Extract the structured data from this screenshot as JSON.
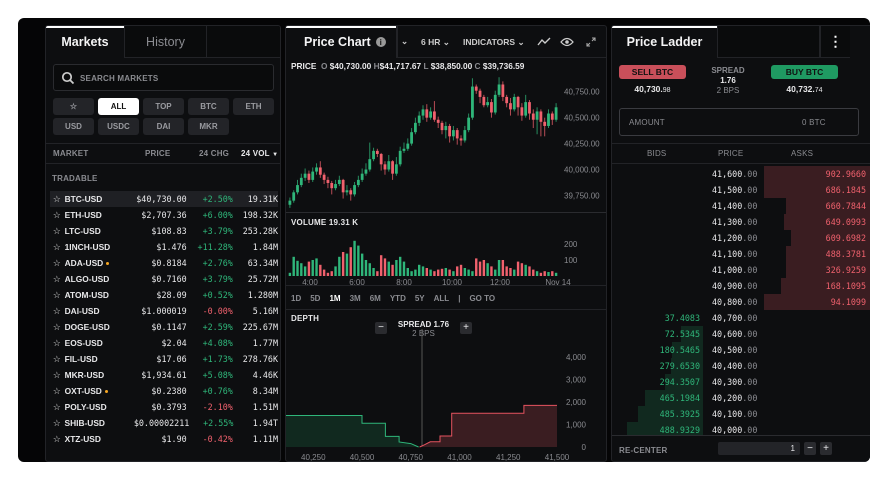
{
  "markets_panel": {
    "tabs": [
      {
        "label": "Markets",
        "active": true
      },
      {
        "label": "History",
        "active": false
      }
    ],
    "search_placeholder": "SEARCH MARKETS",
    "filters": [
      {
        "label": "☆",
        "active": false
      },
      {
        "label": "ALL",
        "active": true
      },
      {
        "label": "TOP",
        "active": false
      },
      {
        "label": "BTC",
        "active": false
      },
      {
        "label": "ETH",
        "active": false
      },
      {
        "label": "USD",
        "active": false
      },
      {
        "label": "USDC",
        "active": false
      },
      {
        "label": "DAI",
        "active": false
      },
      {
        "label": "MKR",
        "active": false
      }
    ],
    "columns": {
      "market": "MARKET",
      "price": "PRICE",
      "change": "24 CHG",
      "volume": "24 VOL"
    },
    "section": "TRADABLE",
    "rows": [
      {
        "market": "BTC-USD",
        "price": "$40,730.00",
        "change": "+2.50%",
        "volume": "19.31K",
        "selected": true
      },
      {
        "market": "ETH-USD",
        "price": "$2,707.36",
        "change": "+6.00%",
        "volume": "198.32K"
      },
      {
        "market": "LTC-USD",
        "price": "$108.83",
        "change": "+3.79%",
        "volume": "253.28K"
      },
      {
        "market": "1INCH-USD",
        "price": "$1.476",
        "change": "+11.28%",
        "volume": "1.84M"
      },
      {
        "market": "ADA-USD",
        "price": "$0.8184",
        "change": "+2.76%",
        "volume": "63.34M",
        "dot": true
      },
      {
        "market": "ALGO-USD",
        "price": "$0.7160",
        "change": "+3.79%",
        "volume": "25.72M"
      },
      {
        "market": "ATOM-USD",
        "price": "$28.09",
        "change": "+0.52%",
        "volume": "1.280M"
      },
      {
        "market": "DAI-USD",
        "price": "$1.000019",
        "change": "-0.00%",
        "volume": "5.16M"
      },
      {
        "market": "DOGE-USD",
        "price": "$0.1147",
        "change": "+2.59%",
        "volume": "225.67M"
      },
      {
        "market": "EOS-USD",
        "price": "$2.04",
        "change": "+4.08%",
        "volume": "1.77M"
      },
      {
        "market": "FIL-USD",
        "price": "$17.06",
        "change": "+1.73%",
        "volume": "278.76K"
      },
      {
        "market": "MKR-USD",
        "price": "$1,934.61",
        "change": "+5.08%",
        "volume": "4.46K"
      },
      {
        "market": "OXT-USD",
        "price": "$0.2380",
        "change": "+0.76%",
        "volume": "8.34M",
        "dot": true
      },
      {
        "market": "POLY-USD",
        "price": "$0.3793",
        "change": "-2.10%",
        "volume": "1.51M"
      },
      {
        "market": "SHIB-USD",
        "price": "$0.00002211",
        "change": "+2.55%",
        "volume": "1.94T"
      },
      {
        "market": "XTZ-USD",
        "price": "$1.90",
        "change": "-0.42%",
        "volume": "1.11M"
      }
    ]
  },
  "chart_panel": {
    "tab": "Price Chart",
    "interval": "6 HR",
    "indicators": "INDICATORS",
    "ohlc": {
      "label": "PRICE",
      "o_key": "O",
      "o": "$40,730.00",
      "h_key": "H",
      "h": "$41,717.67",
      "l_key": "L",
      "l": "$38,850.00",
      "c_key": "C",
      "c": "$39,736.59"
    },
    "volume_label": "VOLUME 19.31 K",
    "ranges": [
      "1D",
      "5D",
      "1M",
      "3M",
      "6M",
      "YTD",
      "5Y",
      "ALL"
    ],
    "active_range": "1M",
    "goto": "GO TO",
    "depth_label": "DEPTH",
    "spread": "SPREAD 1.76",
    "spread_bps": "2 BPS"
  },
  "chart_data": [
    {
      "type": "candlestick",
      "ylim": [
        39600,
        40950
      ],
      "yticks": [
        "40,750.00",
        "40,500.00",
        "40,250.00",
        "40,000.00",
        "39,750.00"
      ],
      "ytick_values": [
        40750,
        40500,
        40250,
        40000,
        39750
      ],
      "ohlc": [
        [
          39660,
          39730,
          39630,
          39700
        ],
        [
          39700,
          39800,
          39680,
          39780
        ],
        [
          39780,
          39900,
          39760,
          39850
        ],
        [
          39850,
          39960,
          39830,
          39920
        ],
        [
          39920,
          40010,
          39890,
          39960
        ],
        [
          39960,
          39990,
          39870,
          39900
        ],
        [
          39900,
          40020,
          39880,
          39980
        ],
        [
          39980,
          40060,
          39950,
          40020
        ],
        [
          40020,
          40080,
          39920,
          39950
        ],
        [
          39950,
          39970,
          39860,
          39900
        ],
        [
          39900,
          39930,
          39820,
          39870
        ],
        [
          39870,
          39890,
          39760,
          39820
        ],
        [
          39820,
          39900,
          39800,
          39860
        ],
        [
          39860,
          39940,
          39840,
          39900
        ],
        [
          39900,
          39910,
          39720,
          39780
        ],
        [
          39780,
          39850,
          39750,
          39800
        ],
        [
          39800,
          39820,
          39700,
          39760
        ],
        [
          39760,
          39880,
          39740,
          39850
        ],
        [
          39850,
          39940,
          39830,
          39900
        ],
        [
          39900,
          40010,
          39880,
          39960
        ],
        [
          39960,
          40060,
          39940,
          40000
        ],
        [
          40000,
          40260,
          39980,
          40100
        ],
        [
          40100,
          40210,
          40080,
          40180
        ],
        [
          40180,
          40200,
          40120,
          40150
        ],
        [
          40150,
          40160,
          39990,
          40050
        ],
        [
          40050,
          40080,
          39950,
          40000
        ],
        [
          40000,
          40140,
          39980,
          40080
        ],
        [
          40080,
          40090,
          39900,
          39960
        ],
        [
          39960,
          40120,
          39940,
          40050
        ],
        [
          40050,
          40220,
          40030,
          40180
        ],
        [
          40180,
          40260,
          40160,
          40200
        ],
        [
          40200,
          40300,
          40180,
          40250
        ],
        [
          40250,
          40400,
          40230,
          40360
        ],
        [
          40360,
          40500,
          40340,
          40450
        ],
        [
          40450,
          40560,
          40420,
          40520
        ],
        [
          40520,
          40620,
          40480,
          40580
        ],
        [
          40580,
          40630,
          40460,
          40500
        ],
        [
          40500,
          40600,
          40480,
          40560
        ],
        [
          40560,
          40660,
          40460,
          40480
        ],
        [
          40480,
          40510,
          40400,
          40450
        ],
        [
          40450,
          40470,
          40340,
          40380
        ],
        [
          40380,
          40460,
          40300,
          40420
        ],
        [
          40420,
          40440,
          40260,
          40320
        ],
        [
          40320,
          40420,
          40280,
          40380
        ],
        [
          40380,
          40400,
          40240,
          40300
        ],
        [
          40300,
          40330,
          40230,
          40280
        ],
        [
          40280,
          40420,
          40260,
          40380
        ],
        [
          40380,
          40540,
          40360,
          40500
        ],
        [
          40500,
          40880,
          40480,
          40800
        ],
        [
          40800,
          40820,
          40730,
          40760
        ],
        [
          40760,
          40780,
          40640,
          40700
        ],
        [
          40700,
          40720,
          40600,
          40620
        ],
        [
          40620,
          40700,
          40600,
          40650
        ],
        [
          40650,
          40680,
          40500,
          40550
        ],
        [
          40550,
          40760,
          40530,
          40720
        ],
        [
          40720,
          40890,
          40700,
          40820
        ],
        [
          40820,
          40850,
          40660,
          40700
        ],
        [
          40700,
          40720,
          40600,
          40640
        ],
        [
          40640,
          40690,
          40520,
          40580
        ],
        [
          40580,
          40730,
          40560,
          40700
        ],
        [
          40700,
          40710,
          40520,
          40600
        ],
        [
          40600,
          40640,
          40470,
          40520
        ],
        [
          40520,
          40720,
          40500,
          40650
        ],
        [
          40650,
          40670,
          40480,
          40540
        ],
        [
          40540,
          40580,
          40400,
          40480
        ],
        [
          40480,
          40600,
          40340,
          40560
        ],
        [
          40560,
          40580,
          40320,
          40460
        ],
        [
          40460,
          40500,
          40320,
          40420
        ],
        [
          40420,
          40580,
          40400,
          40540
        ],
        [
          40540,
          40560,
          40430,
          40480
        ],
        [
          40480,
          40640,
          40460,
          40600
        ]
      ]
    },
    {
      "type": "bar",
      "title": "VOLUME 19.31 K",
      "ylim": [
        0,
        250
      ],
      "yticks": [
        "200",
        "100"
      ],
      "ytick_values": [
        200,
        100
      ],
      "xticks": [
        "4:00",
        "6:00",
        "8:00",
        "10:00",
        "12:00",
        "Nov 14"
      ],
      "values": [
        20,
        120,
        95,
        80,
        60,
        90,
        100,
        110,
        70,
        40,
        20,
        30,
        60,
        120,
        150,
        140,
        180,
        220,
        190,
        140,
        100,
        80,
        50,
        30,
        130,
        110,
        90,
        70,
        100,
        120,
        90,
        50,
        30,
        40,
        70,
        60,
        50,
        40,
        30,
        40,
        45,
        50,
        40,
        30,
        60,
        70,
        50,
        40,
        30,
        110,
        90,
        100,
        80,
        60,
        40,
        100,
        100,
        60,
        50,
        40,
        90,
        80,
        70,
        60,
        40,
        30,
        20,
        30,
        25,
        30,
        20
      ]
    },
    {
      "type": "area",
      "title": "DEPTH",
      "xlim": [
        40110,
        41500
      ],
      "ylim": [
        0,
        4200
      ],
      "xticks": [
        "40,250",
        "40,500",
        "40,750",
        "41,000",
        "41,250",
        "41,500"
      ],
      "xtick_values": [
        40250,
        40500,
        40750,
        41000,
        41250,
        41500
      ],
      "yticks": [
        "4,000",
        "3,000",
        "2,000",
        "1,000",
        "0"
      ],
      "ytick_values": [
        4000,
        3000,
        2000,
        1000,
        0
      ],
      "series": [
        {
          "side": "bids",
          "color": "#2fb67a",
          "points": [
            [
              40110,
              1400
            ],
            [
              40500,
              1400
            ],
            [
              40500,
              1060
            ],
            [
              40620,
              1060
            ],
            [
              40620,
              470
            ],
            [
              40690,
              470
            ],
            [
              40690,
              220
            ],
            [
              40750,
              150
            ],
            [
              40790,
              0
            ]
          ]
        },
        {
          "side": "asks",
          "color": "#e5535f",
          "points": [
            [
              40795,
              0
            ],
            [
              40820,
              100
            ],
            [
              40850,
              230
            ],
            [
              40900,
              230
            ],
            [
              40900,
              490
            ],
            [
              40960,
              490
            ],
            [
              40960,
              1500
            ],
            [
              41330,
              1500
            ],
            [
              41330,
              1850
            ],
            [
              41500,
              1850
            ]
          ]
        }
      ]
    }
  ],
  "ladder_panel": {
    "tab": "Price Ladder",
    "sell_label": "SELL BTC",
    "sell_price_main": "40,730.",
    "sell_price_dec": "98",
    "buy_label": "BUY BTC",
    "buy_price_main": "40,732.",
    "buy_price_dec": "74",
    "spread_label": "SPREAD",
    "spread": "1.76",
    "spread_bps": "2 BPS",
    "amount_label": "AMOUNT",
    "amount_value": "0 BTC",
    "columns": {
      "bids": "BIDS",
      "price": "PRICE",
      "asks": "ASKS"
    },
    "rows": [
      {
        "price": "41,600",
        "dec": ".00",
        "ask": "902.9660"
      },
      {
        "price": "41,500",
        "dec": ".00",
        "ask": "686.1845"
      },
      {
        "price": "41,400",
        "dec": ".00",
        "ask": "660.7844"
      },
      {
        "price": "41,300",
        "dec": ".00",
        "ask": "649.0993"
      },
      {
        "price": "41,200",
        "dec": ".00",
        "ask": "609.6982"
      },
      {
        "price": "41,100",
        "dec": ".00",
        "ask": "488.3781"
      },
      {
        "price": "41,000",
        "dec": ".00",
        "ask": "326.9259"
      },
      {
        "price": "40,900",
        "dec": ".00",
        "ask": "168.1095"
      },
      {
        "price": "40,800",
        "dec": ".00",
        "ask": "94.1099"
      },
      {
        "price": "40,700",
        "dec": ".00",
        "bid": "37.4083"
      },
      {
        "price": "40,600",
        "dec": ".00",
        "bid": "72.5345"
      },
      {
        "price": "40,500",
        "dec": ".00",
        "bid": "180.5465"
      },
      {
        "price": "40,400",
        "dec": ".00",
        "bid": "279.6530"
      },
      {
        "price": "40,300",
        "dec": ".00",
        "bid": "294.3507"
      },
      {
        "price": "40,200",
        "dec": ".00",
        "bid": "465.1984"
      },
      {
        "price": "40,100",
        "dec": ".00",
        "bid": "485.3925"
      },
      {
        "price": "40,000",
        "dec": ".00",
        "bid": "488.9329"
      }
    ],
    "recenter": "RE-CENTER",
    "step_value": "1"
  },
  "colors": {
    "up": "#2fb67a",
    "down": "#f0616d",
    "sell": "#c94f5a",
    "buy": "#1f9a62"
  }
}
